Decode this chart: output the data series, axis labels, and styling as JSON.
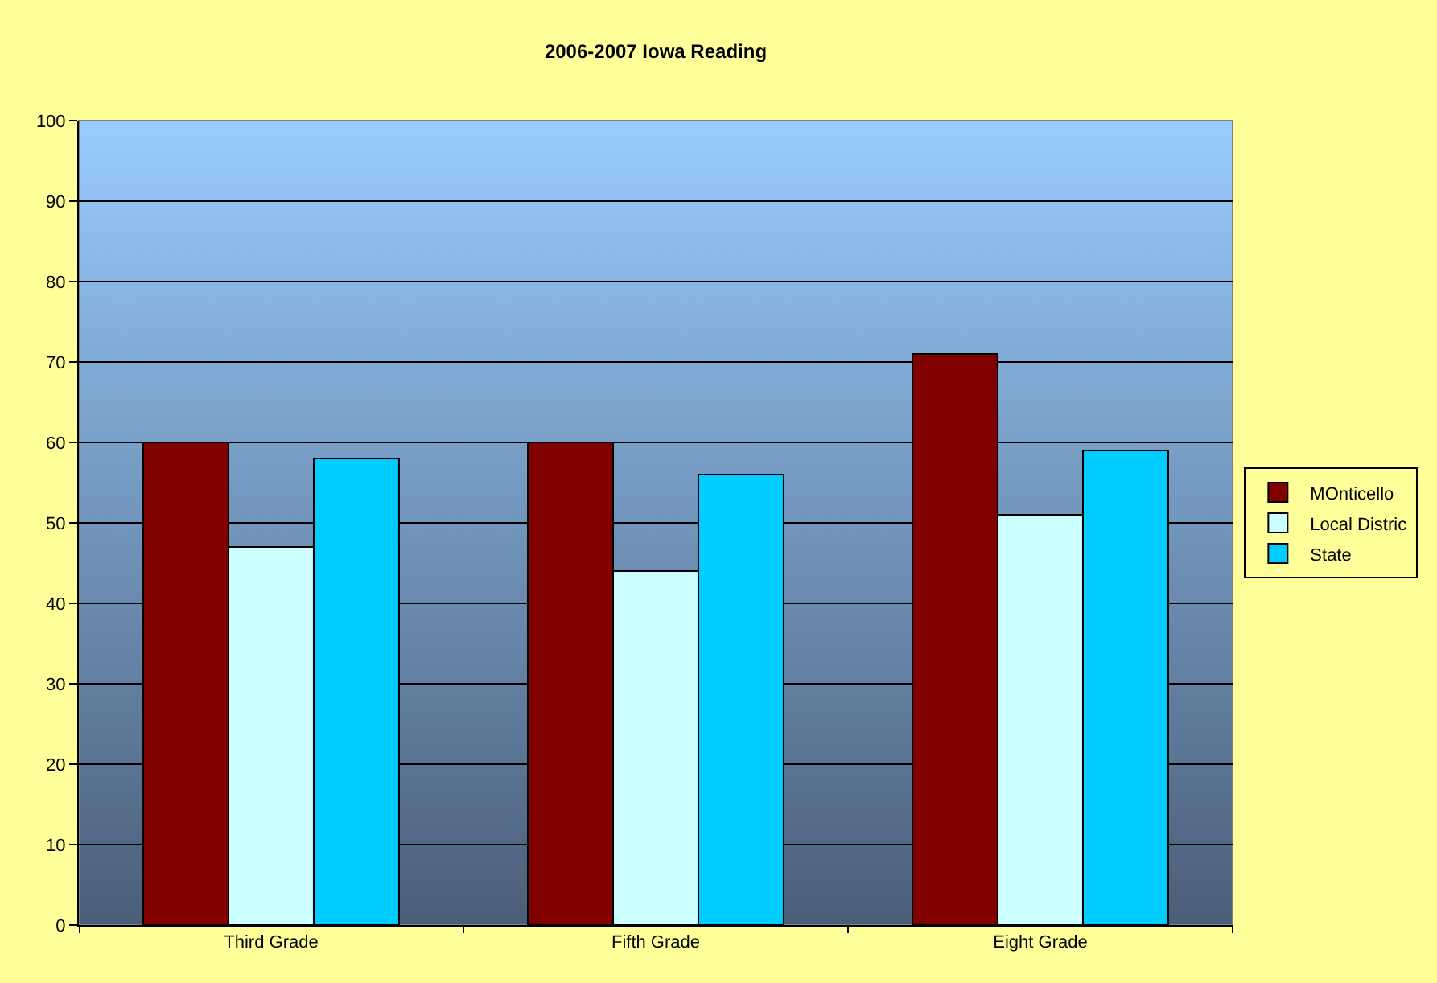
{
  "chart_data": {
    "type": "bar",
    "title": "2006-2007 Iowa Reading",
    "categories": [
      "Third Grade",
      "Fifth Grade",
      "Eight Grade"
    ],
    "series": [
      {
        "name": "MOnticello",
        "color": "#800000",
        "values": [
          60,
          60,
          71
        ]
      },
      {
        "name": "Local Distric",
        "color": "#ccffff",
        "values": [
          47,
          44,
          51
        ]
      },
      {
        "name": "State",
        "color": "#00ccff",
        "values": [
          58,
          56,
          59
        ]
      }
    ],
    "ylim": [
      0,
      100
    ],
    "yticks": [
      0,
      10,
      20,
      30,
      40,
      50,
      60,
      70,
      80,
      90,
      100
    ],
    "grid": "y",
    "legend": "right"
  }
}
